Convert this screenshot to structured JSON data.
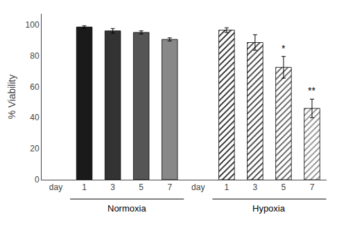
{
  "chart_data": {
    "type": "bar",
    "ylabel": "% Viability",
    "categories": [
      "day",
      "1",
      "3",
      "5",
      "7",
      "day",
      "1",
      "3",
      "5",
      "7"
    ],
    "series": [
      {
        "name": "Normoxia",
        "marker": "solid",
        "values": [
          null,
          98.5,
          96.0,
          95.0,
          90.5,
          null,
          null,
          null,
          null,
          null
        ],
        "errors": [
          null,
          0.8,
          1.5,
          1.0,
          1.0,
          null,
          null,
          null,
          null,
          null
        ],
        "colors": [
          null,
          "#1a1a1a",
          "#333333",
          "#555555",
          "#888888",
          null,
          null,
          null,
          null,
          null
        ]
      },
      {
        "name": "Hypoxia",
        "marker": "hatched",
        "values": [
          null,
          null,
          null,
          null,
          null,
          null,
          96.5,
          88.5,
          72.5,
          46.0
        ],
        "errors": [
          null,
          null,
          null,
          null,
          null,
          null,
          1.5,
          5.0,
          7.0,
          6.0
        ],
        "colors": [
          null,
          null,
          null,
          null,
          null,
          null,
          "#1a1a1a",
          "#333333",
          "#555555",
          "#888888"
        ]
      }
    ],
    "annotations": [
      {
        "text": "*",
        "x": 8,
        "series": "Hypoxia"
      },
      {
        "text": "**",
        "x": 9,
        "series": "Hypoxia"
      }
    ],
    "ylim": [
      0,
      107
    ],
    "yticks": [
      0,
      20,
      40,
      60,
      80,
      100
    ],
    "grid": false
  }
}
